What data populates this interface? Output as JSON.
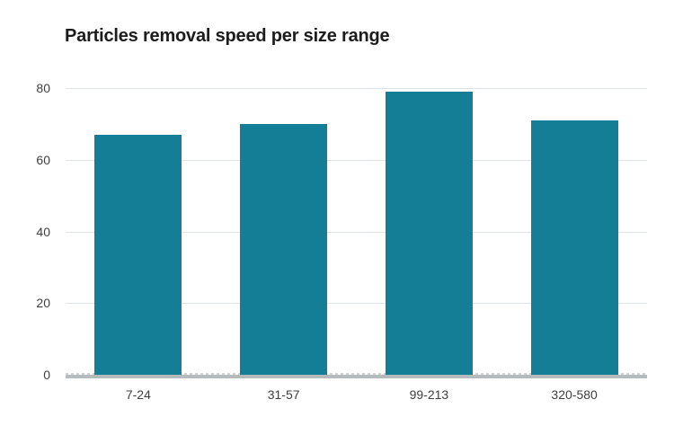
{
  "chart_data": {
    "type": "bar",
    "title": "Particles removal speed per size range",
    "categories": [
      "7-24",
      "31-57",
      "99-213",
      "320-580"
    ],
    "values": [
      67,
      70,
      79,
      71
    ],
    "xlabel": "",
    "ylabel": "",
    "ylim": [
      0,
      80
    ],
    "yticks": [
      0,
      20,
      40,
      60,
      80
    ],
    "grid": "horizontal",
    "legend_position": "none",
    "colors": {
      "bar": "#137e96",
      "gridline": "#dde3e6",
      "axis_line": "#b5babd",
      "zero_dash": "#cfd3d4",
      "title_text": "#1c1c1c",
      "tick_text": "#3f3f3f",
      "background": "#ffffff"
    }
  }
}
